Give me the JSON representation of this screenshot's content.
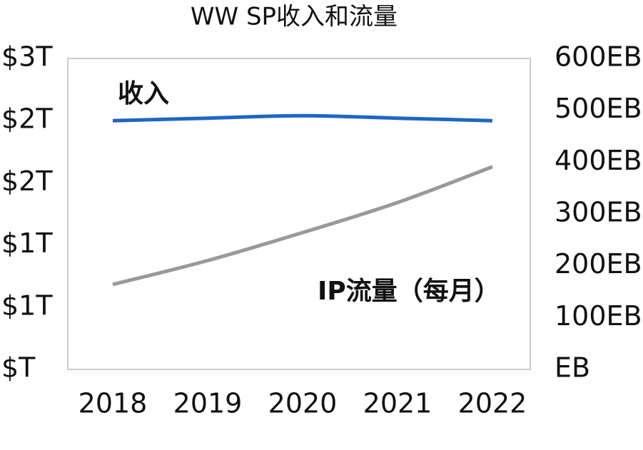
{
  "chart_data": {
    "type": "line",
    "title": "WW SP收入和流量",
    "categories": [
      "2018",
      "2019",
      "2020",
      "2021",
      "2022"
    ],
    "series": [
      {
        "name": "收入",
        "color": "#1f66c4",
        "values": [
          2.0,
          2.02,
          2.04,
          2.02,
          2.0
        ]
      },
      {
        "name": "IP流量（每月）",
        "color": "#999999",
        "axis": "y2",
        "values": [
          164,
          210,
          264,
          322,
          391
        ]
      }
    ],
    "ylim": [
      0,
      2.5
    ],
    "yticks": [
      {
        "value": 0,
        "label": "$T"
      },
      {
        "value": 0.5,
        "label": "$1T"
      },
      {
        "value": 1.0,
        "label": "$1T"
      },
      {
        "value": 1.5,
        "label": "$2T"
      },
      {
        "value": 2.0,
        "label": "$2T"
      },
      {
        "value": 2.5,
        "label": "$3T"
      }
    ],
    "y2lim": [
      0,
      600
    ],
    "y2ticks": [
      {
        "value": 0,
        "label": "EB"
      },
      {
        "value": 100,
        "label": "100EB"
      },
      {
        "value": 200,
        "label": "200EB"
      },
      {
        "value": 300,
        "label": "300EB"
      },
      {
        "value": 400,
        "label": "400EB"
      },
      {
        "value": 500,
        "label": "500EB"
      },
      {
        "value": 600,
        "label": "600EB"
      }
    ]
  }
}
